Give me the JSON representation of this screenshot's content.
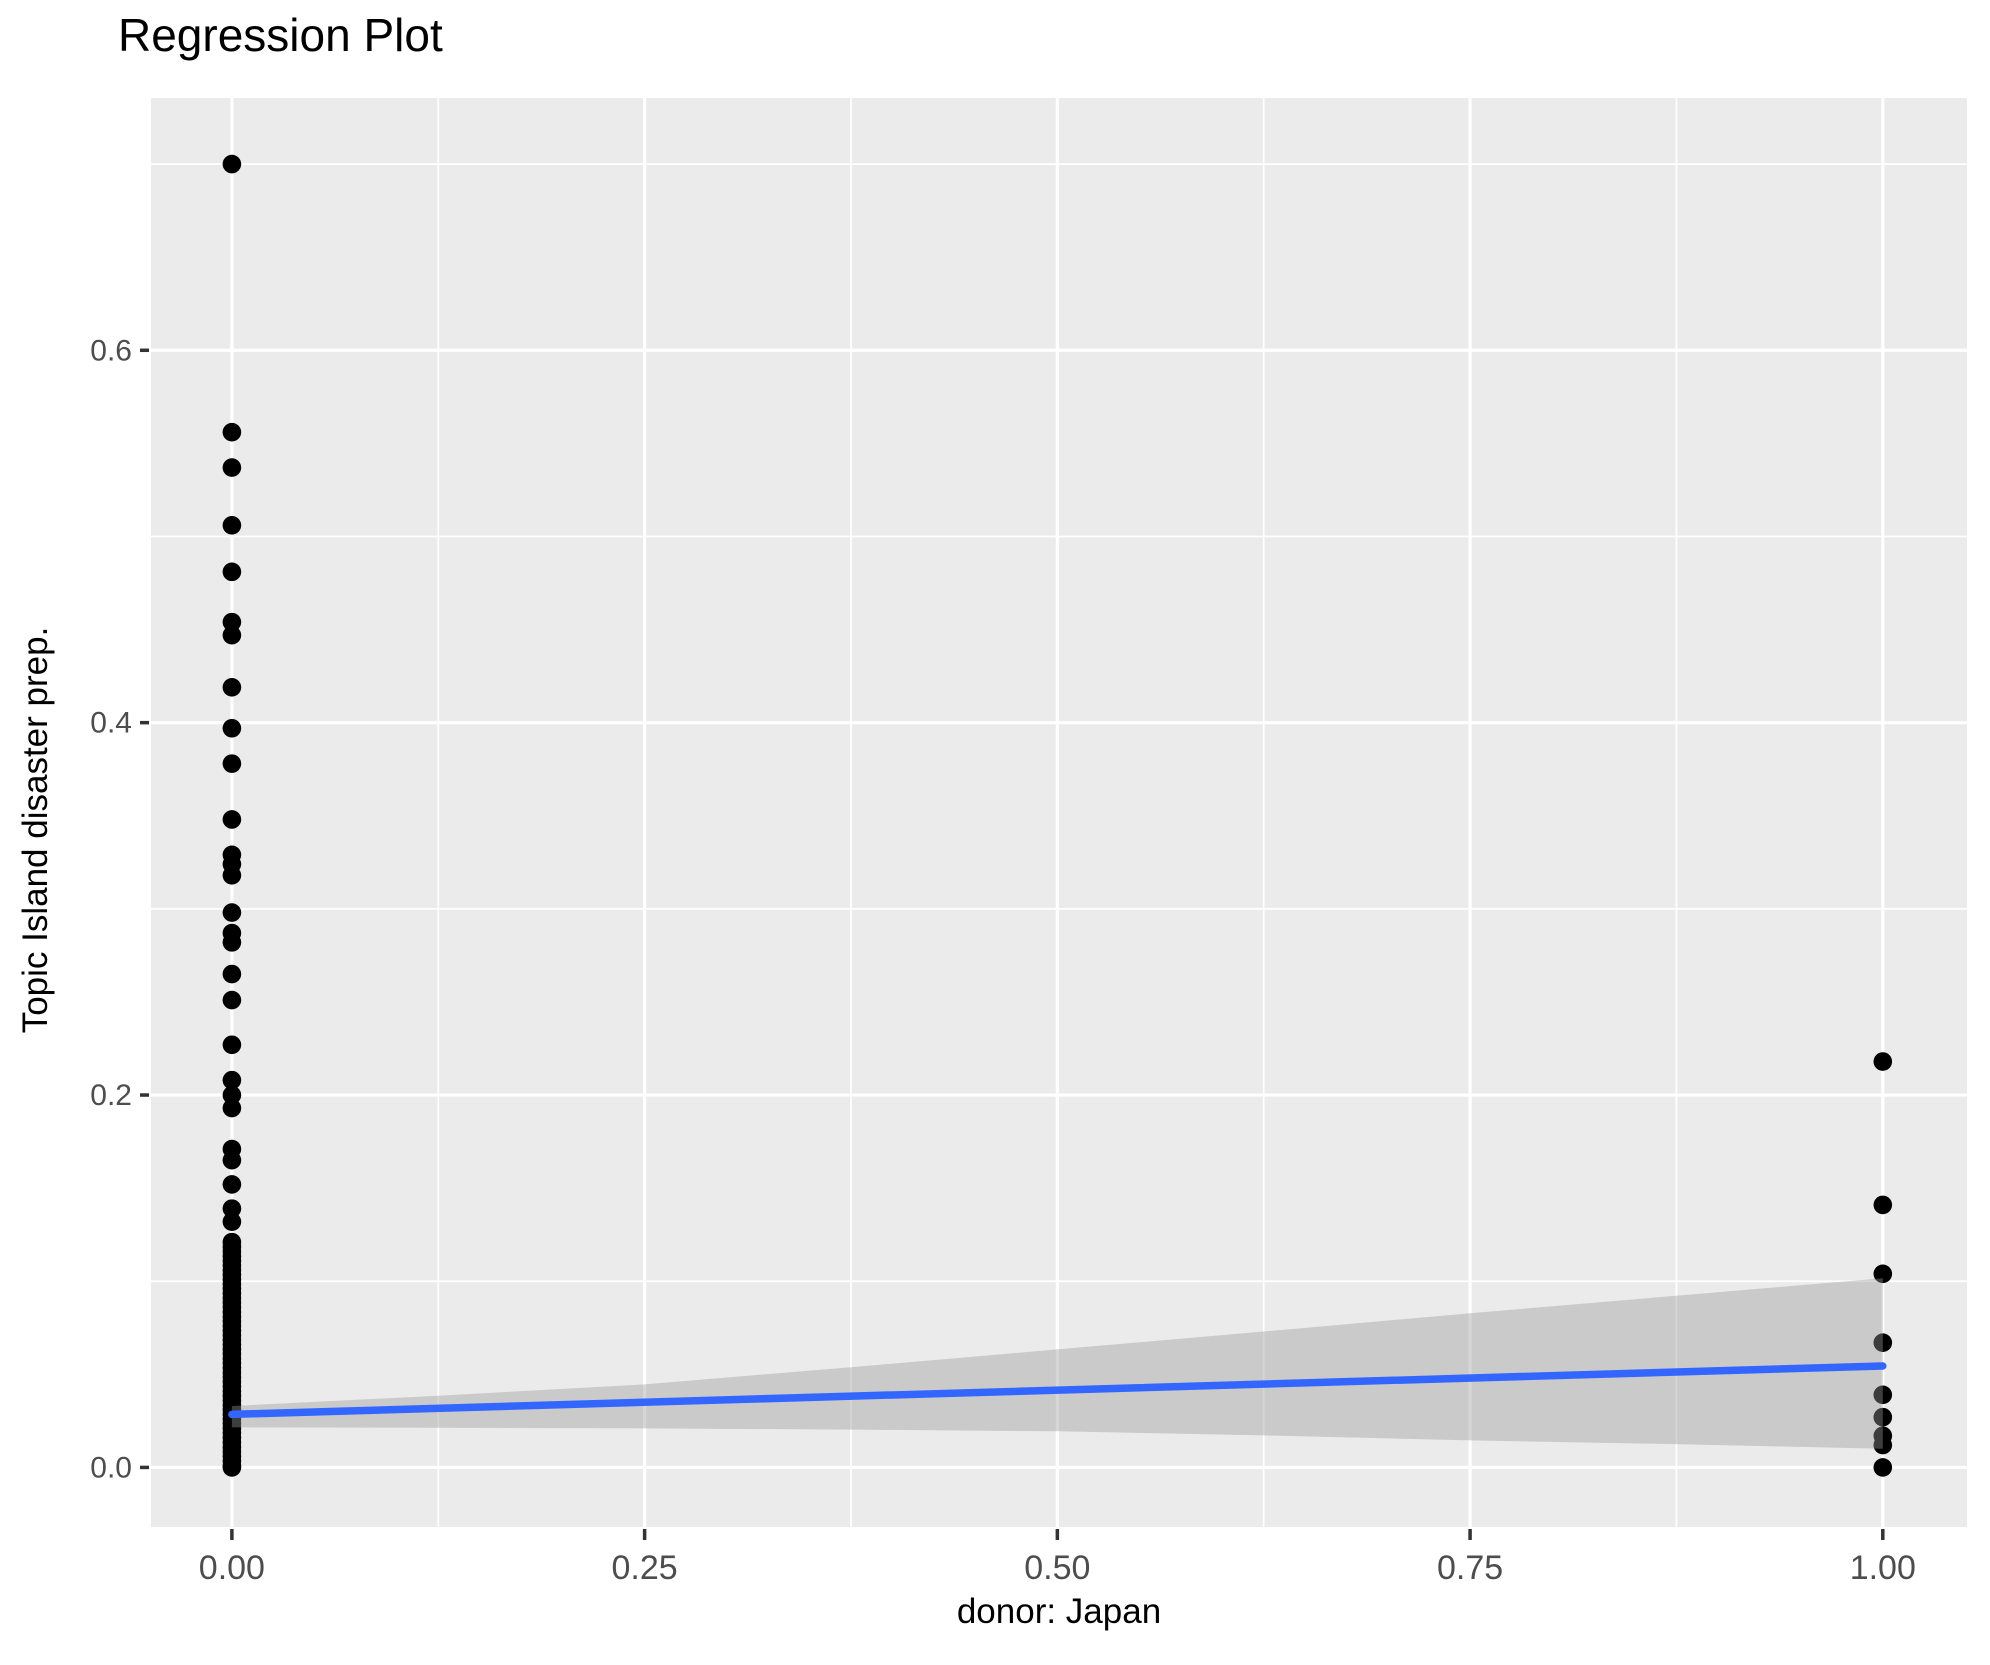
{
  "title": "Regression Plot",
  "axes": {
    "x_title": "donor: Japan",
    "y_title": "Topic Island disaster prep."
  },
  "chart_data": {
    "type": "scatter",
    "title": "Regression Plot",
    "xlabel": "donor: Japan",
    "ylabel": "Topic Island disaster prep.",
    "xlim": [
      -0.049,
      1.051
    ],
    "ylim": [
      -0.032,
      0.7355
    ],
    "x_major_ticks": [
      0,
      0.25,
      0.5,
      0.75,
      1.0
    ],
    "x_tick_labels": [
      "0.00",
      "0.25",
      "0.50",
      "0.75",
      "1.00"
    ],
    "x_minor_ticks": [
      0.125,
      0.375,
      0.625,
      0.875
    ],
    "y_major_ticks": [
      0,
      0.2,
      0.4,
      0.6
    ],
    "y_tick_labels": [
      "0.0",
      "0.2",
      "0.4",
      "0.6"
    ],
    "y_minor_ticks": [
      0.1,
      0.3,
      0.5,
      0.7
    ],
    "grid": "major+minor",
    "legend": false,
    "series": [
      {
        "name": "donor: Japan = 0",
        "x": 0,
        "y": [
          0.7,
          0.556,
          0.537,
          0.506,
          0.481,
          0.454,
          0.447,
          0.419,
          0.397,
          0.378,
          0.348,
          0.329,
          0.324,
          0.318,
          0.298,
          0.287,
          0.282,
          0.265,
          0.251,
          0.227,
          0.208,
          0.2,
          0.193,
          0.171,
          0.165,
          0.152,
          0.139,
          0.132,
          0.121,
          0.1185,
          0.116,
          0.1135,
          0.111,
          0.1085,
          0.106,
          0.1035,
          0.101,
          0.0985,
          0.096,
          0.0935,
          0.091,
          0.0885,
          0.086,
          0.0835,
          0.081,
          0.0785,
          0.076,
          0.0735,
          0.071,
          0.0685,
          0.066,
          0.0635,
          0.061,
          0.0585,
          0.056,
          0.0535,
          0.051,
          0.0485,
          0.046,
          0.0435,
          0.041,
          0.0385,
          0.036,
          0.0335,
          0.031,
          0.0285,
          0.026,
          0.0235,
          0.021,
          0.0185,
          0.016,
          0.0135,
          0.011,
          0.0085,
          0.006,
          0.0035,
          0.001,
          0.0
        ]
      },
      {
        "name": "donor: Japan = 1",
        "x": 1,
        "y": [
          0.218,
          0.141,
          0.104,
          0.067,
          0.039,
          0.027,
          0.017,
          0.012,
          0.0
        ]
      }
    ],
    "regression_line": {
      "x0": 0,
      "y0": 0.0285,
      "x1": 1,
      "y1": 0.0545
    },
    "confidence_band": {
      "x": [
        0,
        0.125,
        0.25,
        0.375,
        0.5,
        0.625,
        0.75,
        0.875,
        1.0
      ],
      "upper": [
        0.033,
        0.0385,
        0.0446,
        0.0538,
        0.0634,
        0.073,
        0.0828,
        0.0922,
        0.1016
      ],
      "lower": [
        0.0215,
        0.0213,
        0.021,
        0.0203,
        0.0194,
        0.0172,
        0.0145,
        0.0125,
        0.01
      ]
    },
    "colors": {
      "point": "#000000",
      "panel_bg": "#EBEBEB",
      "grid": "#FFFFFF",
      "band": "rgba(153,153,153,0.4)",
      "line": "#3366FF",
      "tick_text": "#4D4D4D",
      "tick_mark": "#333333"
    }
  }
}
